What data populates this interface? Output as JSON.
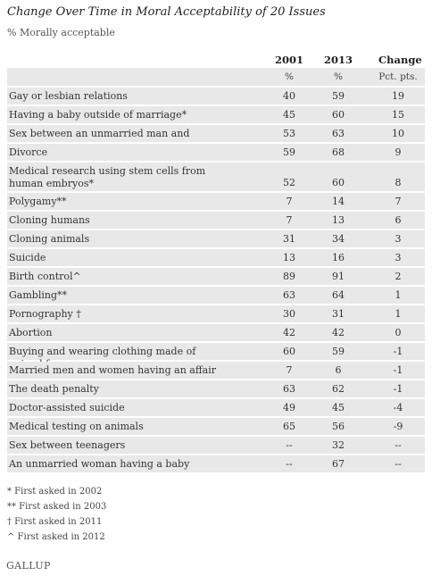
{
  "title": "Change Over Time in Moral Acceptability of 20 Issues",
  "subtitle": "% Morally acceptable",
  "chart_data": {
    "type": "table",
    "columns": [
      "2001",
      "2013",
      "Change"
    ],
    "units": [
      "%",
      "%",
      "Pct. pts."
    ],
    "rows": [
      {
        "label": "Gay or lesbian relations",
        "y2001": "40",
        "y2013": "59",
        "change": "19"
      },
      {
        "label": "Having a baby outside of marriage*",
        "y2001": "45",
        "y2013": "60",
        "change": "15"
      },
      {
        "label": "Sex between an unmarried man and woman",
        "y2001": "53",
        "y2013": "63",
        "change": "10"
      },
      {
        "label": "Divorce",
        "y2001": "59",
        "y2013": "68",
        "change": "9"
      },
      {
        "label": "Medical research using stem cells from human embryos*",
        "y2001": "52",
        "y2013": "60",
        "change": "8"
      },
      {
        "label": "Polygamy**",
        "y2001": "7",
        "y2013": "14",
        "change": "7"
      },
      {
        "label": "Cloning humans",
        "y2001": "7",
        "y2013": "13",
        "change": "6"
      },
      {
        "label": "Cloning animals",
        "y2001": "31",
        "y2013": "34",
        "change": "3"
      },
      {
        "label": "Suicide",
        "y2001": "13",
        "y2013": "16",
        "change": "3"
      },
      {
        "label": "Birth control^",
        "y2001": "89",
        "y2013": "91",
        "change": "2"
      },
      {
        "label": "Gambling**",
        "y2001": "63",
        "y2013": "64",
        "change": "1"
      },
      {
        "label": "Pornography †",
        "y2001": "30",
        "y2013": "31",
        "change": "1"
      },
      {
        "label": "Abortion",
        "y2001": "42",
        "y2013": "42",
        "change": "0"
      },
      {
        "label": "Buying and wearing clothing made of animal fur",
        "y2001": "60",
        "y2013": "59",
        "change": "-1"
      },
      {
        "label": "Married men and women having an affair",
        "y2001": "7",
        "y2013": "6",
        "change": "-1"
      },
      {
        "label": "The death penalty",
        "y2001": "63",
        "y2013": "62",
        "change": "-1"
      },
      {
        "label": "Doctor-assisted suicide",
        "y2001": "49",
        "y2013": "45",
        "change": "-4"
      },
      {
        "label": "Medical testing on animals",
        "y2001": "65",
        "y2013": "56",
        "change": "-9"
      },
      {
        "label": "Sex between teenagers",
        "y2001": "--",
        "y2013": "32",
        "change": "--"
      },
      {
        "label": "An unmarried woman having a baby",
        "y2001": "--",
        "y2013": "67",
        "change": "--"
      }
    ]
  },
  "notes": [
    "*  First asked in 2002",
    "** First asked in 2003",
    "†  First asked in 2011",
    "^  First asked in 2012"
  ],
  "brand": "GALLUP"
}
